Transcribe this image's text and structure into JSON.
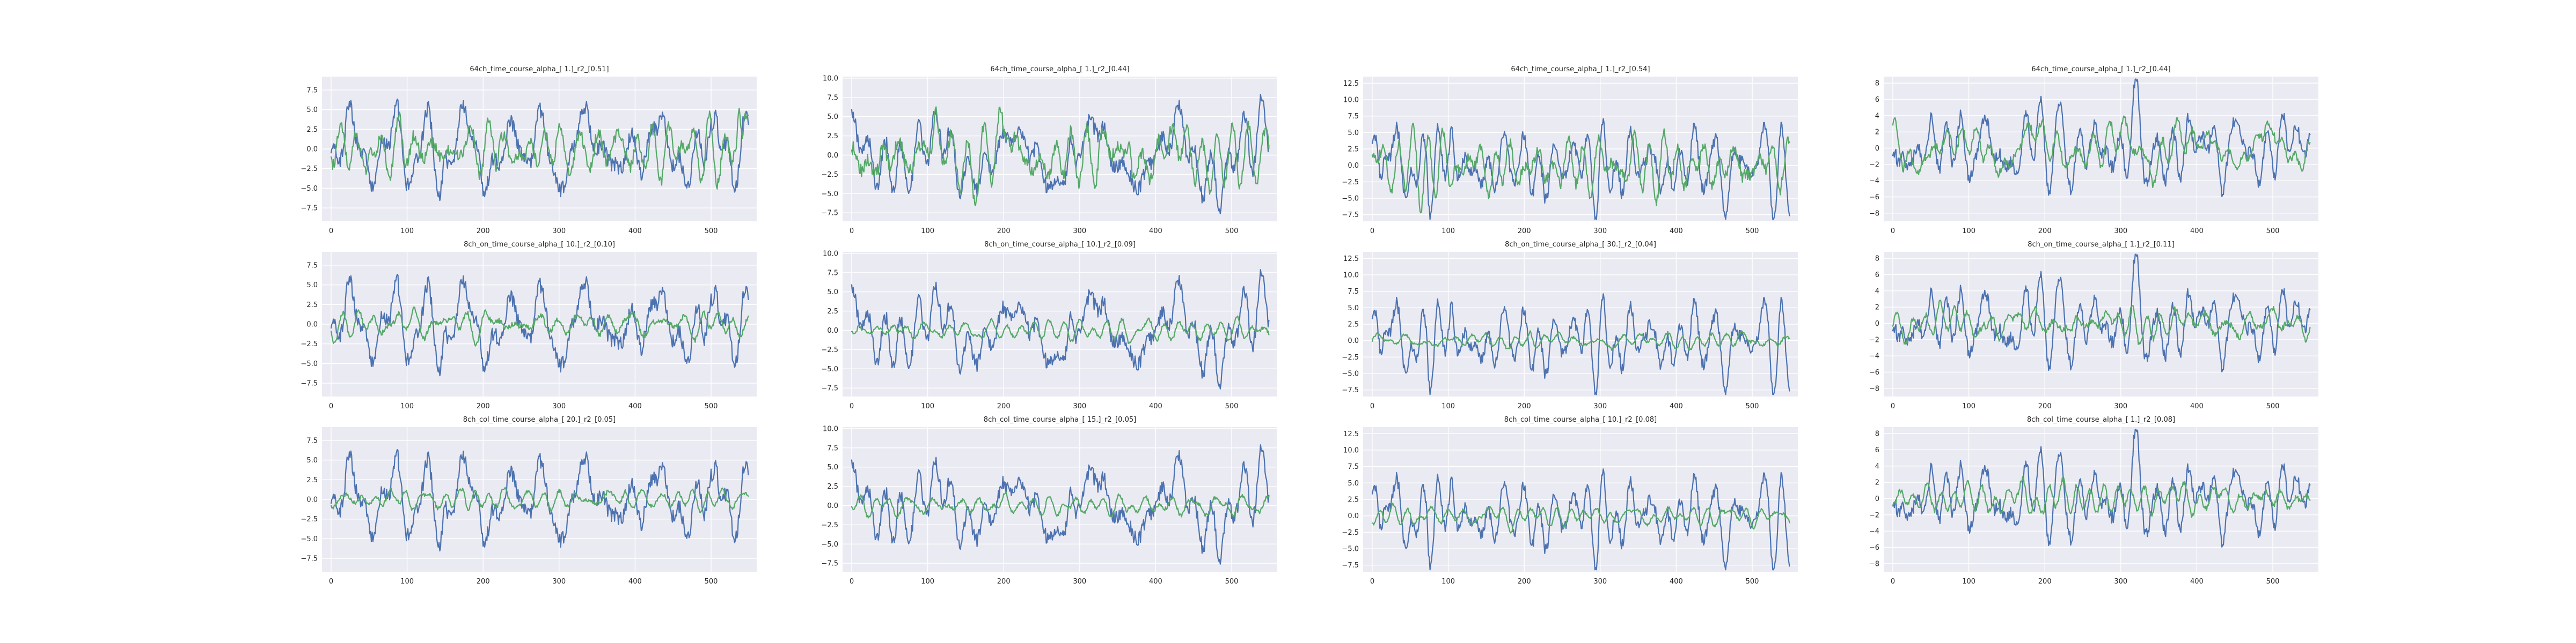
{
  "colors": {
    "blue": "#4c72b0",
    "green": "#55a868",
    "panel_bg": "#eaeaf2",
    "grid": "#ffffff"
  },
  "chart_data": [
    {
      "type": "line",
      "title": "64ch_time_course_alpha_[ 1.]_r2_[0.51]",
      "xlim": [
        -12,
        560
      ],
      "ylim": [
        -9.2,
        9.2
      ],
      "xticks": [
        0,
        100,
        200,
        300,
        400,
        500
      ],
      "yticks": [
        -7.5,
        -5.0,
        -2.5,
        0.0,
        2.5,
        5.0,
        7.5
      ],
      "ytick_labels": [
        "−7.5",
        "−5.0",
        "−2.5",
        "0.0",
        "2.5",
        "5.0",
        "7.5"
      ],
      "grid": true,
      "x": "0..549 (1 step)",
      "series": [
        {
          "color": "#4c72b0",
          "amp": 2.9,
          "seed": 11
        },
        {
          "color": "#55a868",
          "amp": 1.9,
          "seed": 12
        }
      ]
    },
    {
      "type": "line",
      "title": "64ch_time_course_alpha_[ 1.]_r2_[0.44]",
      "xlim": [
        -12,
        560
      ],
      "ylim": [
        -8.6,
        10.2
      ],
      "xticks": [
        0,
        100,
        200,
        300,
        400,
        500
      ],
      "yticks": [
        -7.5,
        -5.0,
        -2.5,
        0.0,
        2.5,
        5.0,
        7.5,
        10.0
      ],
      "ytick_labels": [
        "−7.5",
        "−5.0",
        "−2.5",
        "0.0",
        "2.5",
        "5.0",
        "7.5",
        "10.0"
      ],
      "grid": true,
      "x": "0..549 (1 step)",
      "series": [
        {
          "color": "#4c72b0",
          "amp": 3.0,
          "seed": 21
        },
        {
          "color": "#55a868",
          "amp": 2.3,
          "seed": 22
        }
      ]
    },
    {
      "type": "line",
      "title": "64ch_time_course_alpha_[ 1.]_r2_[0.54]",
      "xlim": [
        -12,
        560
      ],
      "ylim": [
        -8.5,
        13.5
      ],
      "xticks": [
        0,
        100,
        200,
        300,
        400,
        500
      ],
      "yticks": [
        -7.5,
        -5.0,
        -2.5,
        0.0,
        2.5,
        5.0,
        7.5,
        10.0,
        12.5
      ],
      "ytick_labels": [
        "−7.5",
        "−5.0",
        "−2.5",
        "0.0",
        "2.5",
        "5.0",
        "7.5",
        "10.0",
        "12.5"
      ],
      "grid": true,
      "x": "0..549 (1 step)",
      "series": [
        {
          "color": "#4c72b0",
          "amp": 3.2,
          "seed": 31
        },
        {
          "color": "#55a868",
          "amp": 2.4,
          "seed": 32
        }
      ]
    },
    {
      "type": "line",
      "title": "64ch_time_course_alpha_[ 1.]_r2_[0.44]",
      "xlim": [
        -12,
        560
      ],
      "ylim": [
        -9.0,
        8.8
      ],
      "xticks": [
        0,
        100,
        200,
        300,
        400,
        500
      ],
      "yticks": [
        -8,
        -6,
        -4,
        -2,
        0,
        2,
        4,
        6,
        8
      ],
      "ytick_labels": [
        "−8",
        "−6",
        "−4",
        "−2",
        "0",
        "2",
        "4",
        "6",
        "8"
      ],
      "grid": true,
      "x": "0..549 (1 step)",
      "series": [
        {
          "color": "#4c72b0",
          "amp": 2.6,
          "seed": 41
        },
        {
          "color": "#55a868",
          "amp": 1.7,
          "seed": 42
        }
      ]
    },
    {
      "type": "line",
      "title": "8ch_on_time_course_alpha_[ 10.]_r2_[0.10]",
      "xlim": [
        -12,
        560
      ],
      "ylim": [
        -9.2,
        9.2
      ],
      "xticks": [
        0,
        100,
        200,
        300,
        400,
        500
      ],
      "yticks": [
        -7.5,
        -5.0,
        -2.5,
        0.0,
        2.5,
        5.0,
        7.5
      ],
      "ytick_labels": [
        "−7.5",
        "−5.0",
        "−2.5",
        "0.0",
        "2.5",
        "5.0",
        "7.5"
      ],
      "grid": true,
      "x": "0..549 (1 step)",
      "series": [
        {
          "color": "#4c72b0",
          "amp": 2.9,
          "seed": 11
        },
        {
          "color": "#55a868",
          "amp": 0.9,
          "seed": 52
        }
      ]
    },
    {
      "type": "line",
      "title": "8ch_on_time_course_alpha_[ 10.]_r2_[0.09]",
      "xlim": [
        -12,
        560
      ],
      "ylim": [
        -8.6,
        10.2
      ],
      "xticks": [
        0,
        100,
        200,
        300,
        400,
        500
      ],
      "yticks": [
        -7.5,
        -5.0,
        -2.5,
        0.0,
        2.5,
        5.0,
        7.5,
        10.0
      ],
      "ytick_labels": [
        "−7.5",
        "−5.0",
        "−2.5",
        "0.0",
        "2.5",
        "5.0",
        "7.5",
        "10.0"
      ],
      "grid": true,
      "x": "0..549 (1 step)",
      "series": [
        {
          "color": "#4c72b0",
          "amp": 3.0,
          "seed": 21
        },
        {
          "color": "#55a868",
          "amp": 0.7,
          "seed": 62
        }
      ]
    },
    {
      "type": "line",
      "title": "8ch_on_time_course_alpha_[ 30.]_r2_[0.04]",
      "xlim": [
        -12,
        560
      ],
      "ylim": [
        -8.5,
        13.5
      ],
      "xticks": [
        0,
        100,
        200,
        300,
        400,
        500
      ],
      "yticks": [
        -7.5,
        -5.0,
        -2.5,
        0.0,
        2.5,
        5.0,
        7.5,
        10.0,
        12.5
      ],
      "ytick_labels": [
        "−7.5",
        "−5.0",
        "−2.5",
        "0.0",
        "2.5",
        "5.0",
        "7.5",
        "10.0",
        "12.5"
      ],
      "grid": true,
      "x": "0..549 (1 step)",
      "series": [
        {
          "color": "#4c72b0",
          "amp": 3.2,
          "seed": 31
        },
        {
          "color": "#55a868",
          "amp": 0.6,
          "seed": 72
        }
      ]
    },
    {
      "type": "line",
      "title": "8ch_on_time_course_alpha_[ 1.]_r2_[0.11]",
      "xlim": [
        -12,
        560
      ],
      "ylim": [
        -9.0,
        8.8
      ],
      "xticks": [
        0,
        100,
        200,
        300,
        400,
        500
      ],
      "yticks": [
        -8,
        -6,
        -4,
        -2,
        0,
        2,
        4,
        6,
        8
      ],
      "ytick_labels": [
        "−8",
        "−6",
        "−4",
        "−2",
        "0",
        "2",
        "4",
        "6",
        "8"
      ],
      "grid": true,
      "x": "0..549 (1 step)",
      "series": [
        {
          "color": "#4c72b0",
          "amp": 2.6,
          "seed": 41
        },
        {
          "color": "#55a868",
          "amp": 1.0,
          "seed": 82
        }
      ]
    },
    {
      "type": "line",
      "title": "8ch_col_time_course_alpha_[ 20.]_r2_[0.05]",
      "xlim": [
        -12,
        560
      ],
      "ylim": [
        -9.2,
        9.2
      ],
      "xticks": [
        0,
        100,
        200,
        300,
        400,
        500
      ],
      "yticks": [
        -7.5,
        -5.0,
        -2.5,
        0.0,
        2.5,
        5.0,
        7.5
      ],
      "ytick_labels": [
        "−7.5",
        "−5.0",
        "−2.5",
        "0.0",
        "2.5",
        "5.0",
        "7.5"
      ],
      "grid": true,
      "x": "0..549 (1 step)",
      "series": [
        {
          "color": "#4c72b0",
          "amp": 2.9,
          "seed": 11
        },
        {
          "color": "#55a868",
          "amp": 0.7,
          "seed": 92
        }
      ]
    },
    {
      "type": "line",
      "title": "8ch_col_time_course_alpha_[ 15.]_r2_[0.05]",
      "xlim": [
        -12,
        560
      ],
      "ylim": [
        -8.6,
        10.2
      ],
      "xticks": [
        0,
        100,
        200,
        300,
        400,
        500
      ],
      "yticks": [
        -7.5,
        -5.0,
        -2.5,
        0.0,
        2.5,
        5.0,
        7.5,
        10.0
      ],
      "ytick_labels": [
        "−7.5",
        "−5.0",
        "−2.5",
        "0.0",
        "2.5",
        "5.0",
        "7.5",
        "10.0"
      ],
      "grid": true,
      "x": "0..549 (1 step)",
      "series": [
        {
          "color": "#4c72b0",
          "amp": 3.0,
          "seed": 21
        },
        {
          "color": "#55a868",
          "amp": 0.7,
          "seed": 102
        }
      ]
    },
    {
      "type": "line",
      "title": "8ch_col_time_course_alpha_[ 10.]_r2_[0.08]",
      "xlim": [
        -12,
        560
      ],
      "ylim": [
        -8.5,
        13.5
      ],
      "xticks": [
        0,
        100,
        200,
        300,
        400,
        500
      ],
      "yticks": [
        -7.5,
        -5.0,
        -2.5,
        0.0,
        2.5,
        5.0,
        7.5,
        10.0,
        12.5
      ],
      "ytick_labels": [
        "−7.5",
        "−5.0",
        "−2.5",
        "0.0",
        "2.5",
        "5.0",
        "7.5",
        "10.0",
        "12.5"
      ],
      "grid": true,
      "x": "0..549 (1 step)",
      "series": [
        {
          "color": "#4c72b0",
          "amp": 3.2,
          "seed": 31
        },
        {
          "color": "#55a868",
          "amp": 0.8,
          "seed": 112
        }
      ]
    },
    {
      "type": "line",
      "title": "8ch_col_time_course_alpha_[ 1.]_r2_[0.08]",
      "xlim": [
        -12,
        560
      ],
      "ylim": [
        -9.0,
        8.8
      ],
      "xticks": [
        0,
        100,
        200,
        300,
        400,
        500
      ],
      "yticks": [
        -8,
        -6,
        -4,
        -2,
        0,
        2,
        4,
        6,
        8
      ],
      "ytick_labels": [
        "−8",
        "−6",
        "−4",
        "−2",
        "0",
        "2",
        "4",
        "6",
        "8"
      ],
      "grid": true,
      "x": "0..549 (1 step)",
      "series": [
        {
          "color": "#4c72b0",
          "amp": 2.6,
          "seed": 41
        },
        {
          "color": "#55a868",
          "amp": 1.0,
          "seed": 122
        }
      ]
    }
  ]
}
